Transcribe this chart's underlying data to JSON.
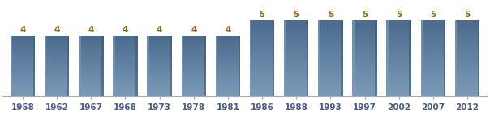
{
  "categories": [
    "1958",
    "1962",
    "1967",
    "1968",
    "1973",
    "1978",
    "1981",
    "1986",
    "1988",
    "1993",
    "1997",
    "2002",
    "2007",
    "2012"
  ],
  "values": [
    4,
    4,
    4,
    4,
    4,
    4,
    4,
    5,
    5,
    5,
    5,
    5,
    5,
    5
  ],
  "bar_color_main": "#4a6a8c",
  "bar_color_light": "#7a9ab8",
  "bar_color_dark": "#3a556e",
  "background_color": "#ffffff",
  "ylim": [
    0,
    6.2
  ],
  "label_fontsize": 7.5,
  "tick_fontsize": 7.5,
  "bar_width": 0.72,
  "label_color": "#8B6914",
  "tick_color": "#4a5a8a"
}
